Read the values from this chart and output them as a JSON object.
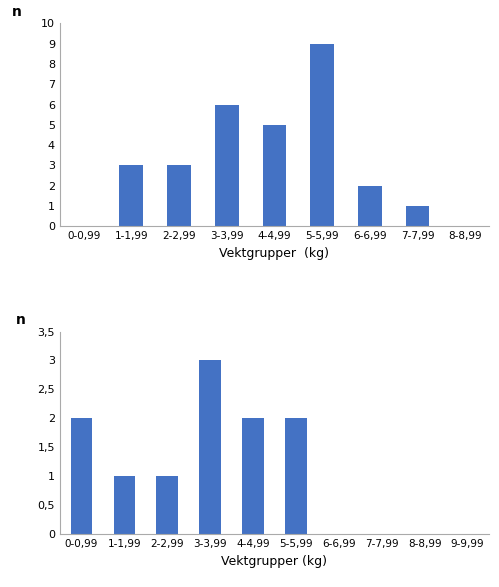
{
  "chart1": {
    "categories": [
      "0-0,99",
      "1-1,99",
      "2-2,99",
      "3-3,99",
      "4-4,99",
      "5-5,99",
      "6-6,99",
      "7-7,99",
      "8-8,99"
    ],
    "values": [
      0,
      3,
      3,
      6,
      5,
      9,
      2,
      1,
      0
    ],
    "ylabel": "n",
    "xlabel": "Vektgrupper  (kg)",
    "ylim": [
      0,
      10
    ],
    "yticks": [
      0,
      1,
      2,
      3,
      4,
      5,
      6,
      7,
      8,
      9,
      10
    ],
    "bar_color": "#4472C4"
  },
  "chart2": {
    "categories": [
      "0-0,99",
      "1-1,99",
      "2-2,99",
      "3-3,99",
      "4-4,99",
      "5-5,99",
      "6-6,99",
      "7-7,99",
      "8-8,99",
      "9-9,99"
    ],
    "values": [
      2,
      1,
      1,
      3,
      2,
      2,
      0,
      0,
      0,
      0
    ],
    "ylabel": "n",
    "xlabel": "Vektgrupper (kg)",
    "ylim": [
      0,
      3.5
    ],
    "yticks": [
      0,
      0.5,
      1,
      1.5,
      2,
      2.5,
      3,
      3.5
    ],
    "bar_color": "#4472C4"
  },
  "background_color": "#ffffff"
}
